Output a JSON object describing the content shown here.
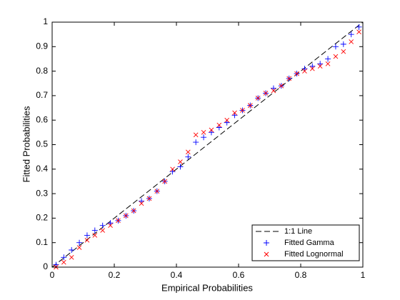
{
  "chart_data": {
    "type": "scatter",
    "xlabel": "Empirical Probabilities",
    "ylabel": "Fitted Probabilities",
    "xlim": [
      0,
      1
    ],
    "ylim": [
      0,
      1
    ],
    "xticks": [
      0,
      0.2,
      0.4,
      0.6,
      0.8,
      1
    ],
    "yticks": [
      0,
      0.1,
      0.2,
      0.3,
      0.4,
      0.5,
      0.6,
      0.7,
      0.8,
      0.9,
      1
    ],
    "grid": false,
    "legend": "lower right",
    "series": [
      {
        "name": "1:1 Line",
        "color": "#000000",
        "style": "dashed",
        "x": [
          0,
          1
        ],
        "values": [
          0,
          1
        ]
      },
      {
        "name": "Fitted Gamma",
        "color": "#0000ff",
        "marker": "+",
        "x": [
          0.0125,
          0.0375,
          0.0625,
          0.0875,
          0.1125,
          0.1375,
          0.1625,
          0.1875,
          0.2125,
          0.2375,
          0.2625,
          0.2875,
          0.3125,
          0.3375,
          0.3625,
          0.3875,
          0.4125,
          0.4375,
          0.4625,
          0.4875,
          0.5125,
          0.5375,
          0.5625,
          0.5875,
          0.6125,
          0.6375,
          0.6625,
          0.6875,
          0.7125,
          0.7375,
          0.7625,
          0.7875,
          0.8125,
          0.8375,
          0.8625,
          0.8875,
          0.9125,
          0.9375,
          0.9625,
          0.9875
        ],
        "values": [
          0.01,
          0.04,
          0.07,
          0.1,
          0.13,
          0.15,
          0.17,
          0.18,
          0.19,
          0.21,
          0.23,
          0.27,
          0.28,
          0.31,
          0.35,
          0.39,
          0.41,
          0.45,
          0.51,
          0.53,
          0.55,
          0.57,
          0.59,
          0.62,
          0.64,
          0.66,
          0.69,
          0.71,
          0.73,
          0.74,
          0.77,
          0.79,
          0.81,
          0.82,
          0.83,
          0.85,
          0.9,
          0.91,
          0.95,
          0.98
        ]
      },
      {
        "name": "Fitted Lognormal",
        "color": "#ff0000",
        "marker": "x",
        "x": [
          0.0125,
          0.0375,
          0.0625,
          0.0875,
          0.1125,
          0.1375,
          0.1625,
          0.1875,
          0.2125,
          0.2375,
          0.2625,
          0.2875,
          0.3125,
          0.3375,
          0.3625,
          0.3875,
          0.4125,
          0.4375,
          0.4625,
          0.4875,
          0.5125,
          0.5375,
          0.5625,
          0.5875,
          0.6125,
          0.6375,
          0.6625,
          0.6875,
          0.7125,
          0.7375,
          0.7625,
          0.7875,
          0.8125,
          0.8375,
          0.8625,
          0.8875,
          0.9125,
          0.9375,
          0.9625,
          0.9875
        ],
        "values": [
          0.0,
          0.02,
          0.04,
          0.08,
          0.11,
          0.13,
          0.15,
          0.17,
          0.19,
          0.21,
          0.23,
          0.26,
          0.28,
          0.31,
          0.35,
          0.4,
          0.43,
          0.47,
          0.54,
          0.55,
          0.56,
          0.58,
          0.6,
          0.63,
          0.64,
          0.66,
          0.69,
          0.71,
          0.72,
          0.74,
          0.77,
          0.79,
          0.8,
          0.81,
          0.82,
          0.83,
          0.86,
          0.88,
          0.92,
          0.96
        ]
      }
    ]
  }
}
